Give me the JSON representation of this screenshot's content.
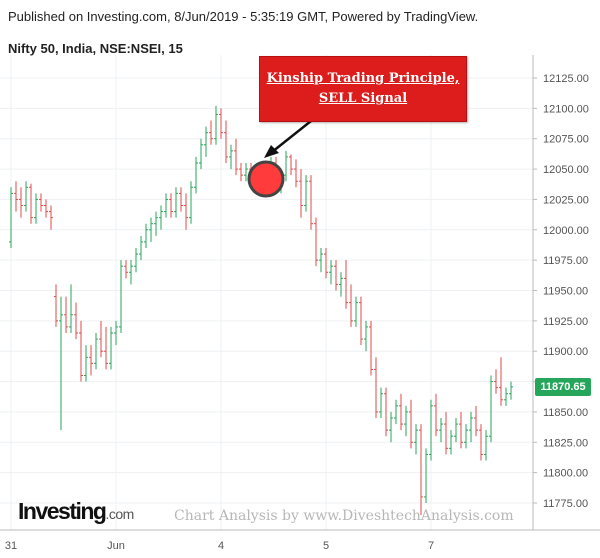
{
  "header": {
    "published_line": "Published on Investing.com, 8/Jun/2019 - 5:35:19 GMT, Powered by TradingView.",
    "symbol_line": "Nifty 50, India, NSE:NSEI, 15"
  },
  "annotation": {
    "line1": "Kinship Trading Principle,",
    "line2": "SELL Signal",
    "marker_color": "#ff3b3b"
  },
  "last_price": {
    "label": "11870.65",
    "value": 11870.65
  },
  "branding": {
    "logo_main": "Investing",
    "logo_suffix": ".com",
    "watermark": "Chart Analysis by www.DiveshtechAnalysis.com"
  },
  "colors": {
    "up": "#26a65b",
    "down": "#e24a4a",
    "grid": "#eef0f3",
    "axis": "#555555"
  },
  "chart_data": {
    "type": "ohlc-bar",
    "title": "Nifty 50, India, NSE:NSEI, 15",
    "timeframe": "15",
    "ylim": [
      11760,
      12140
    ],
    "y_ticks": [
      11775,
      11800,
      11825,
      11850,
      11875,
      11900,
      11925,
      11950,
      11975,
      12000,
      12025,
      12050,
      12075,
      12100,
      12125
    ],
    "y_tick_labels": [
      "11775.00",
      "11800.00",
      "11825.00",
      "11850.00",
      "11875.00",
      "11900.00",
      "11925.00",
      "11950.00",
      "11975.00",
      "12000.00",
      "12025.00",
      "12050.00",
      "12075.00",
      "12100.00",
      "12125.00"
    ],
    "x_tick_labels": [
      "31",
      "Jun",
      "4",
      "5",
      "7"
    ],
    "x_tick_bar_index": [
      0,
      21,
      42,
      63,
      84
    ],
    "grid": true,
    "series": [
      {
        "values": [
          [
            11990,
            12035,
            11985,
            12030
          ],
          [
            12030,
            12040,
            12015,
            12025
          ],
          [
            12025,
            12035,
            12010,
            12020
          ],
          [
            12020,
            12040,
            12015,
            12035
          ],
          [
            12035,
            12038,
            12005,
            12010
          ],
          [
            12010,
            12030,
            12005,
            12025
          ],
          [
            12025,
            12030,
            12015,
            12020
          ],
          [
            12020,
            12025,
            12010,
            12015
          ],
          [
            12015,
            12020,
            12000,
            12010
          ],
          [
            11945,
            11955,
            11920,
            11925
          ],
          [
            11925,
            11945,
            11835,
            11930
          ],
          [
            11930,
            11945,
            11915,
            11920
          ],
          [
            11920,
            11955,
            11915,
            11930
          ],
          [
            11930,
            11940,
            11910,
            11915
          ],
          [
            11915,
            11925,
            11875,
            11880
          ],
          [
            11880,
            11905,
            11875,
            11895
          ],
          [
            11895,
            11905,
            11880,
            11890
          ],
          [
            11890,
            11915,
            11885,
            11910
          ],
          [
            11910,
            11925,
            11895,
            11900
          ],
          [
            11900,
            11920,
            11885,
            11890
          ],
          [
            11890,
            11920,
            11885,
            11915
          ],
          [
            11915,
            11925,
            11905,
            11920
          ],
          [
            11920,
            11975,
            11915,
            11970
          ],
          [
            11970,
            11975,
            11960,
            11965
          ],
          [
            11965,
            11975,
            11955,
            11970
          ],
          [
            11970,
            11985,
            11965,
            11980
          ],
          [
            11980,
            11995,
            11975,
            11990
          ],
          [
            11990,
            12005,
            11985,
            12000
          ],
          [
            12000,
            12010,
            11990,
            12005
          ],
          [
            12005,
            12015,
            11995,
            12010
          ],
          [
            12010,
            12020,
            12000,
            12015
          ],
          [
            12015,
            12030,
            12010,
            12025
          ],
          [
            12025,
            12030,
            12010,
            12015
          ],
          [
            12015,
            12035,
            12010,
            12030
          ],
          [
            12030,
            12035,
            12015,
            12020
          ],
          [
            12020,
            12030,
            12000,
            12010
          ],
          [
            12010,
            12040,
            12005,
            12035
          ],
          [
            12035,
            12060,
            12030,
            12055
          ],
          [
            12055,
            12075,
            12050,
            12070
          ],
          [
            12070,
            12085,
            12060,
            12080
          ],
          [
            12080,
            12090,
            12070,
            12075
          ],
          [
            12075,
            12102,
            12070,
            12095
          ],
          [
            12095,
            12100,
            12075,
            12080
          ],
          [
            12080,
            12090,
            12055,
            12060
          ],
          [
            12060,
            12070,
            12050,
            12065
          ],
          [
            12065,
            12075,
            12045,
            12050
          ],
          [
            12050,
            12055,
            12040,
            12045
          ],
          [
            12045,
            12055,
            12040,
            12050
          ],
          [
            12050,
            12055,
            12040,
            12045
          ],
          [
            12045,
            12050,
            12030,
            12035
          ],
          [
            12035,
            12050,
            12030,
            12045
          ],
          [
            12045,
            12055,
            12040,
            12050
          ],
          [
            12050,
            12060,
            12040,
            12055
          ],
          [
            12055,
            12060,
            12030,
            12035
          ],
          [
            12035,
            12050,
            12030,
            12045
          ],
          [
            12045,
            12065,
            12040,
            12060
          ],
          [
            12060,
            12062,
            12045,
            12050
          ],
          [
            12050,
            12058,
            12035,
            12040
          ],
          [
            12040,
            12050,
            12010,
            12020
          ],
          [
            12020,
            12045,
            12015,
            12040
          ],
          [
            12040,
            12045,
            12000,
            12005
          ],
          [
            12005,
            12010,
            11970,
            11975
          ],
          [
            11975,
            11985,
            11965,
            11980
          ],
          [
            11980,
            11985,
            11960,
            11965
          ],
          [
            11965,
            11975,
            11955,
            11970
          ],
          [
            11970,
            11975,
            11950,
            11955
          ],
          [
            11955,
            11965,
            11945,
            11960
          ],
          [
            11960,
            11975,
            11935,
            11940
          ],
          [
            11940,
            11955,
            11920,
            11925
          ],
          [
            11925,
            11945,
            11920,
            11940
          ],
          [
            11940,
            11945,
            11905,
            11910
          ],
          [
            11910,
            11925,
            11900,
            11920
          ],
          [
            11920,
            11925,
            11880,
            11885
          ],
          [
            11885,
            11895,
            11845,
            11850
          ],
          [
            11850,
            11870,
            11845,
            11865
          ],
          [
            11865,
            11870,
            11830,
            11835
          ],
          [
            11835,
            11850,
            11825,
            11845
          ],
          [
            11845,
            11860,
            11840,
            11855
          ],
          [
            11855,
            11865,
            11835,
            11840
          ],
          [
            11840,
            11855,
            11830,
            11850
          ],
          [
            11850,
            11860,
            11820,
            11825
          ],
          [
            11825,
            11840,
            11815,
            11835
          ],
          [
            11835,
            11840,
            11765,
            11780
          ],
          [
            11780,
            11820,
            11775,
            11815
          ],
          [
            11815,
            11860,
            11810,
            11855
          ],
          [
            11855,
            11865,
            11830,
            11835
          ],
          [
            11835,
            11845,
            11825,
            11840
          ],
          [
            11840,
            11850,
            11815,
            11820
          ],
          [
            11820,
            11835,
            11815,
            11830
          ],
          [
            11830,
            11845,
            11825,
            11840
          ],
          [
            11840,
            11850,
            11820,
            11825
          ],
          [
            11825,
            11840,
            11820,
            11835
          ],
          [
            11835,
            11850,
            11825,
            11845
          ],
          [
            11845,
            11855,
            11830,
            11835
          ],
          [
            11835,
            11840,
            11810,
            11815
          ],
          [
            11815,
            11835,
            11810,
            11830
          ],
          [
            11830,
            11880,
            11825,
            11875
          ],
          [
            11875,
            11885,
            11865,
            11870
          ],
          [
            11870,
            11895,
            11855,
            11860
          ],
          [
            11860,
            11870,
            11855,
            11865
          ],
          [
            11865,
            11875,
            11860,
            11870.65
          ]
        ]
      }
    ]
  }
}
